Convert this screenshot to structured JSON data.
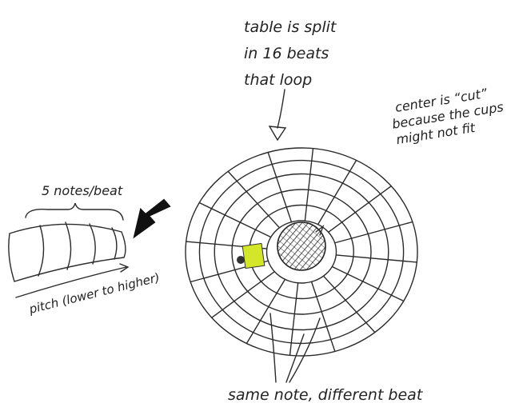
{
  "annotations": {
    "top": {
      "lines": [
        "table is split",
        "in 16 beats",
        "that loop"
      ]
    },
    "center": {
      "lines": [
        "center is “cut”",
        "because the cups",
        "might not fit"
      ]
    },
    "notes": "5 notes/beat",
    "pitch": "pitch (lower to higher)",
    "bottom": "same note, different beat"
  }
}
